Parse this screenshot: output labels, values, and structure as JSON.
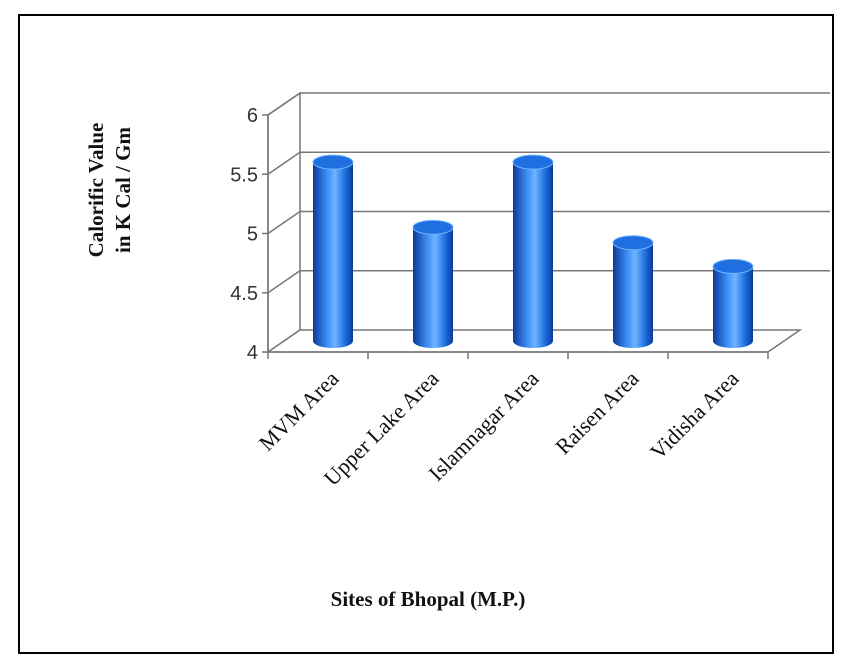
{
  "chart_data": {
    "type": "bar",
    "categories": [
      "MVM Area",
      "Upper Lake Area",
      "Islamnagar Area",
      "Raisen Area",
      "Vidisha Area"
    ],
    "values": [
      5.5,
      4.95,
      5.5,
      4.82,
      4.62
    ],
    "ylabel_line1": "Calorific Value",
    "ylabel_line2": "in K Cal / Gm",
    "xlabel": "Sites of Bhopal (M.P.)",
    "ylim": [
      4,
      6
    ],
    "yticks": [
      "4",
      "4.5",
      "5",
      "5.5",
      "6"
    ],
    "grid": true,
    "style": "3d-cylinder",
    "bar_color": "#1f6fe0",
    "bar_highlight": "#6fb4ff",
    "bar_shadow": "#0b3a9a"
  }
}
